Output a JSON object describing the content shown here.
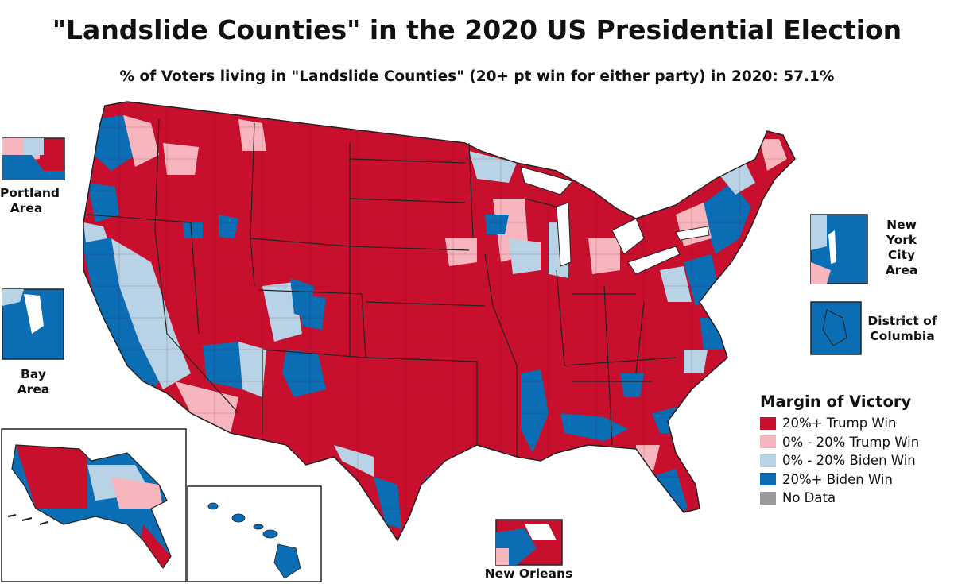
{
  "title": "\"Landslide Counties\" in the 2020 US Presidential Election",
  "subtitle": "% of Voters living in \"Landslide Counties\" (20+ pt win for either party) in 2020: 57.1%",
  "colors": {
    "trump_landslide": "#c8102e",
    "trump_lean": "#f7b6bd",
    "biden_lean": "#b8d3e6",
    "biden_landslide": "#0b6db4",
    "no_data": "#9a9a9a",
    "border": "#222222"
  },
  "insets": {
    "portland": "Portland\nArea",
    "bay": "Bay\nArea",
    "nyc": "New\nYork\nCity\nArea",
    "dc": "District of\nColumbia",
    "new_orleans": "New Orleans"
  },
  "legend": {
    "title": "Margin of Victory",
    "items": [
      {
        "label": "20%+ Trump Win",
        "color": "#c8102e"
      },
      {
        "label": "0% - 20% Trump Win",
        "color": "#f7b6bd"
      },
      {
        "label": "0% - 20% Biden Win",
        "color": "#b8d3e6"
      },
      {
        "label": "20%+ Biden Win",
        "color": "#0b6db4"
      },
      {
        "label": "No Data",
        "color": "#9a9a9a"
      }
    ]
  }
}
